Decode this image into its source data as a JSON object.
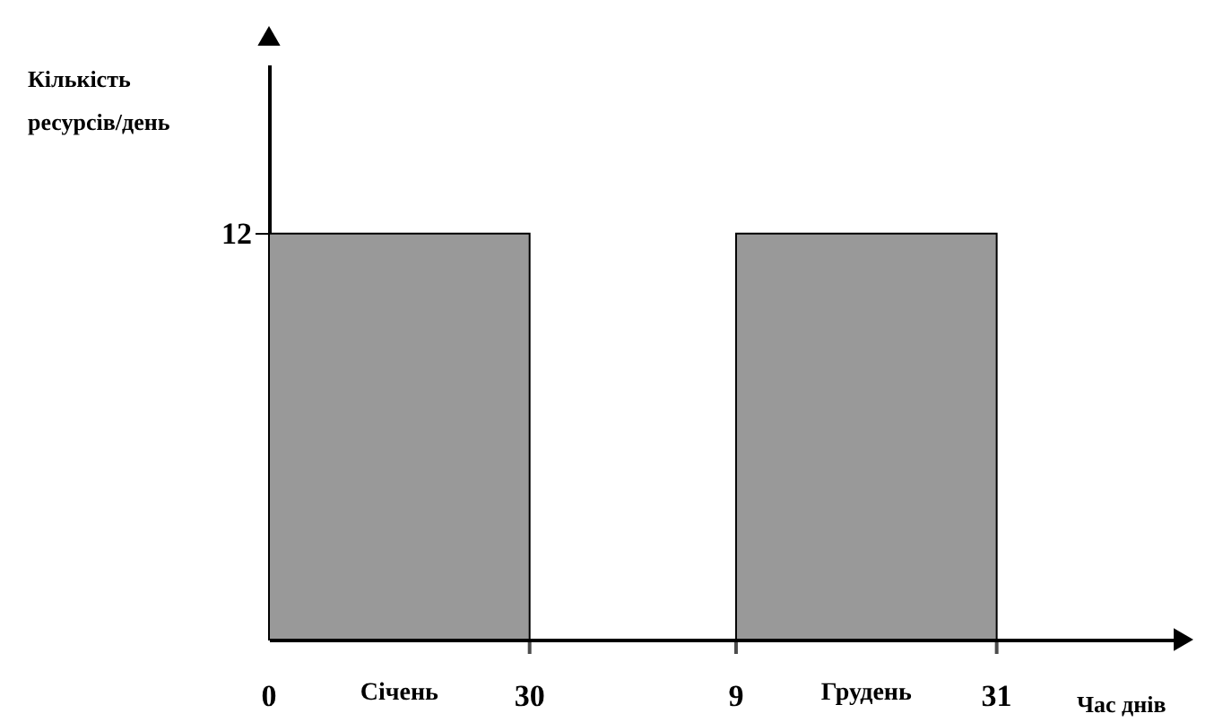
{
  "chart_data": {
    "type": "bar",
    "categories": [
      "Січень",
      "Грудень"
    ],
    "values": [
      12,
      12
    ],
    "color": "#999999",
    "xlabel": "Час днів",
    "ylabel": "Кількість ресурсів/день",
    "ylim": [
      0,
      17
    ],
    "yticks": [
      12
    ],
    "annotations": [
      "0",
      "30",
      "9",
      "31"
    ],
    "grid": false
  }
}
